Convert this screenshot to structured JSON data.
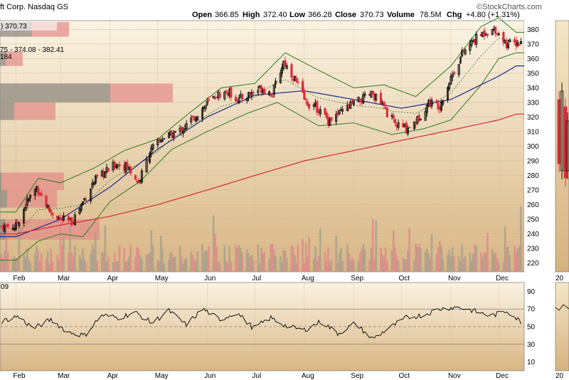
{
  "header": {
    "title_fragment": "ft Corp. Nasdaq GS",
    "open_label": "Open",
    "open": "366.85",
    "high_label": "High",
    "high": "372.40",
    "low_label": "Low",
    "low": "366.28",
    "close_label": "Close",
    "close": "370.73",
    "volume_label": "Volume",
    "volume": "78.5M",
    "chg_label": "Chg",
    "chg": "+4.80 (+1.31%)",
    "watermark": "©StockCharts.com"
  },
  "legend": {
    "price_fragment": ") 370.73",
    "bb_fragment": "75 - 374.08 - 382.41",
    "vol_fragment": "184",
    "rsi_fragment": "09"
  },
  "colors": {
    "background_top": "#fbf3e3",
    "background_bottom": "#dcbd8c",
    "up_candle": "#000000",
    "down_candle": "#e02a38",
    "bollinger": "#2f7a1f",
    "bb_middle": "#2f7a1f",
    "ma50": "#1d2a8c",
    "ma200": "#d42b2b",
    "volume_up": "#a8a08c",
    "volume_down": "#df8a8a",
    "volume_profile_gray": "#8e8a80",
    "volume_profile_red": "#e28a88",
    "rsi_line": "#000000"
  },
  "chart_data": [
    {
      "type": "candlestick",
      "panel": "price",
      "x_labels": [
        "Feb",
        "Mar",
        "Apr",
        "May",
        "Jun",
        "Jul",
        "Aug",
        "Sep",
        "Oct",
        "Nov",
        "Dec"
      ],
      "y_ticks": [
        220,
        230,
        240,
        250,
        260,
        270,
        280,
        290,
        300,
        310,
        320,
        330,
        340,
        350,
        360,
        370,
        380
      ],
      "ylim": [
        214,
        386
      ],
      "close_path": [
        [
          "Feb 1",
          245
        ],
        [
          "Feb 8",
          262
        ],
        [
          "Feb 14",
          272
        ],
        [
          "Feb 22",
          256
        ],
        [
          "Mar 1",
          250
        ],
        [
          "Mar 8",
          248
        ],
        [
          "Mar 15",
          262
        ],
        [
          "Mar 22",
          276
        ],
        [
          "Mar 29",
          282
        ],
        [
          "Apr 5",
          288
        ],
        [
          "Apr 12",
          286
        ],
        [
          "Apr 19",
          275
        ],
        [
          "Apr 26",
          296
        ],
        [
          "May 3",
          305
        ],
        [
          "May 10",
          308
        ],
        [
          "May 17",
          312
        ],
        [
          "May 24",
          320
        ],
        [
          "May 31",
          328
        ],
        [
          "Jun 7",
          335
        ],
        [
          "Jun 14",
          337
        ],
        [
          "Jun 21",
          332
        ],
        [
          "Jun 28",
          336
        ],
        [
          "Jul 5",
          340
        ],
        [
          "Jul 12",
          336
        ],
        [
          "Jul 19",
          358
        ],
        [
          "Jul 26",
          346
        ],
        [
          "Aug 2",
          330
        ],
        [
          "Aug 9",
          326
        ],
        [
          "Aug 16",
          318
        ],
        [
          "Aug 23",
          322
        ],
        [
          "Aug 30",
          328
        ],
        [
          "Sep 6",
          332
        ],
        [
          "Sep 13",
          336
        ],
        [
          "Sep 20",
          326
        ],
        [
          "Sep 27",
          315
        ],
        [
          "Oct 4",
          312
        ],
        [
          "Oct 11",
          318
        ],
        [
          "Oct 18",
          330
        ],
        [
          "Oct 25",
          328
        ],
        [
          "Nov 1",
          347
        ],
        [
          "Nov 8",
          363
        ],
        [
          "Nov 15",
          372
        ],
        [
          "Nov 22",
          378
        ],
        [
          "Nov 29",
          380
        ],
        [
          "Dec 6",
          370
        ],
        [
          "Dec 12",
          370.73
        ]
      ],
      "ma50_path": [
        [
          "Feb 1",
          238
        ],
        [
          "Mar 1",
          250
        ],
        [
          "Apr 1",
          272
        ],
        [
          "May 1",
          298
        ],
        [
          "Jun 1",
          320
        ],
        [
          "Jul 1",
          335
        ],
        [
          "Aug 1",
          338
        ],
        [
          "Sep 1",
          332
        ],
        [
          "Oct 1",
          326
        ],
        [
          "Nov 1",
          332
        ],
        [
          "Dec 1",
          348
        ],
        [
          "Dec 12",
          355
        ]
      ],
      "ma200_path": [
        [
          "Feb 1",
          240
        ],
        [
          "Mar 1",
          246
        ],
        [
          "Apr 1",
          252
        ],
        [
          "May 1",
          260
        ],
        [
          "Jun 1",
          270
        ],
        [
          "Jul 1",
          280
        ],
        [
          "Aug 1",
          290
        ],
        [
          "Sep 1",
          297
        ],
        [
          "Oct 1",
          304
        ],
        [
          "Nov 1",
          311
        ],
        [
          "Dec 1",
          318
        ],
        [
          "Dec 12",
          322
        ]
      ],
      "bb_upper_path": [
        [
          "Feb 1",
          255
        ],
        [
          "Feb 15",
          278
        ],
        [
          "Mar 1",
          275
        ],
        [
          "Mar 22",
          285
        ],
        [
          "Apr 10",
          297
        ],
        [
          "May 1",
          305
        ],
        [
          "May 20",
          322
        ],
        [
          "Jun 10",
          340
        ],
        [
          "Jul 1",
          343
        ],
        [
          "Jul 20",
          364
        ],
        [
          "Aug 10",
          352
        ],
        [
          "Sep 1",
          340
        ],
        [
          "Sep 20",
          342
        ],
        [
          "Oct 10",
          334
        ],
        [
          "Nov 1",
          355
        ],
        [
          "Nov 20",
          382
        ],
        [
          "Dec 1",
          388
        ],
        [
          "Dec 12",
          378
        ]
      ],
      "bb_lower_path": [
        [
          "Feb 1",
          222
        ],
        [
          "Feb 15",
          235
        ],
        [
          "Mar 1",
          240
        ],
        [
          "Mar 15",
          238
        ],
        [
          "Apr 1",
          262
        ],
        [
          "Apr 20",
          276
        ],
        [
          "May 10",
          298
        ],
        [
          "Jun 1",
          310
        ],
        [
          "Jun 25",
          322
        ],
        [
          "Jul 15",
          330
        ],
        [
          "Aug 10",
          314
        ],
        [
          "Sep 1",
          316
        ],
        [
          "Sep 25",
          308
        ],
        [
          "Oct 15",
          312
        ],
        [
          "Nov 1",
          318
        ],
        [
          "Nov 20",
          342
        ],
        [
          "Dec 1",
          360
        ],
        [
          "Dec 12",
          364
        ]
      ]
    },
    {
      "type": "bar",
      "panel": "volume",
      "note": "daily volume bars overlaid in price panel",
      "latest_volume": "78.5M"
    },
    {
      "type": "line",
      "panel": "rsi",
      "x_labels": [
        "Feb",
        "Mar",
        "Apr",
        "May",
        "Jun",
        "Jul",
        "Aug",
        "Sep",
        "Oct",
        "Nov",
        "Dec"
      ],
      "y_ticks": [
        10,
        30,
        50,
        70,
        90
      ],
      "ylim": [
        0,
        100
      ],
      "reference_lines": [
        30,
        50,
        70
      ],
      "values": [
        55,
        62,
        48,
        58,
        44,
        40,
        63,
        60,
        66,
        54,
        68,
        52,
        70,
        58,
        66,
        48,
        60,
        50,
        46,
        56,
        42,
        54,
        36,
        48,
        60,
        63,
        70,
        72,
        68,
        62,
        68,
        52
      ]
    }
  ]
}
